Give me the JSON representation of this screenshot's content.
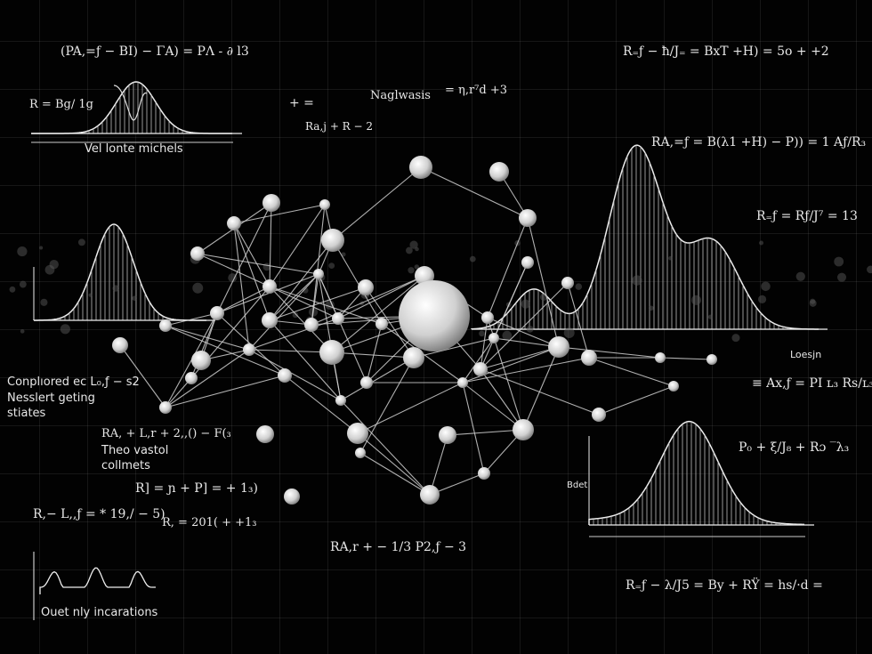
{
  "colors": {
    "background": "#020202",
    "foreground": "#e8e8e8",
    "grid": "#222222"
  },
  "equations": {
    "eq_top_left": "(PA,=ƒ − BI) − ΓA) = PΛ - ∂ l3",
    "eq_r_bg": "R = Bg/ 1g",
    "eq_plus": "+ =",
    "eq_nagl": "Naglwasis",
    "eq_nagl_rhs": "= η,r⁷d +3",
    "eq_ra_r2": "Ra,j + R − 2",
    "eq_top_right": "R₌ƒ − ħ/J₌ = BxT +H) = 5o + +2",
    "eq_ra_b": "RA,=ƒ = B(λ1 +H) − P)) = 1 Aƒ/R₃",
    "eq_r13": "R₌ƒ = Rƒ/J⁷ = 13",
    "eq_ax": "≡ Ax,ƒ = PI ʟ₃ Rs/ʟ₃",
    "eq_po": "P₀ + ξ/J₈ + Rɔ ‾λ₃",
    "eq_ra_l": "RA, + L,r + 2,,() − F(₃",
    "eq_rj": "R] = ɲ + P] = + 1₃)",
    "eq_r_l": "R,− L,,ƒ = * 19,/ − 5)",
    "eq_r201": "R, = 201( + +1₃",
    "eq_ra_13": "RA,r + − 1/3  P2,ƒ − 3",
    "eq_bottom_right": "R₌ƒ − λ/J5 = By + RŸ = hs/·d ="
  },
  "labels": {
    "top_chart_caption": "Vel lonte michels",
    "compared": "Conplıored ec L₀,ƒ − s2",
    "nessler": "Nesslert geting",
    "states": "stiates",
    "theo": "Theo vastol",
    "coll": "collmets",
    "wave_caption": "Ouet nly incarations",
    "losin": "Loesjn",
    "bell_ylabel": "Bdet"
  }
}
